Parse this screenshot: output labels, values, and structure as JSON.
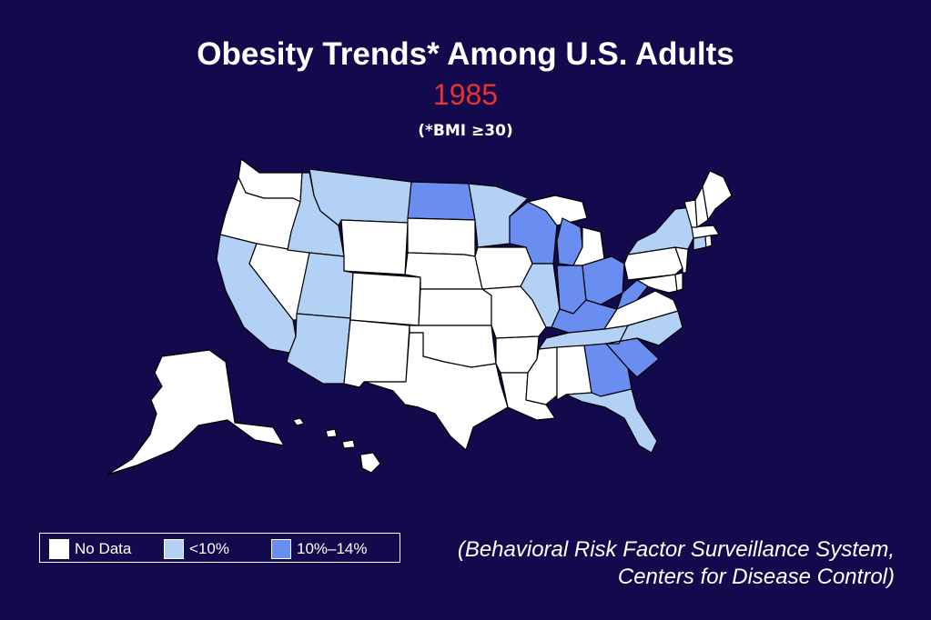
{
  "title": "Obesity Trends* Among U.S. Adults",
  "year": "1985",
  "subtitle": "(*BMI ≥30)",
  "legend": {
    "items": [
      {
        "label": "No Data",
        "color": "#ffffff"
      },
      {
        "label": "<10%",
        "color": "#b3d1f5"
      },
      {
        "label": "10%–14%",
        "color": "#6a8df2"
      }
    ]
  },
  "source": {
    "line1": "(Behavioral Risk Factor Surveillance System,",
    "line2": "Centers for Disease Control)"
  },
  "colors": {
    "background": "#13094d",
    "no_data": "#ffffff",
    "lt10": "#b3d1f5",
    "r10_14": "#6a8df2"
  },
  "states": {
    "lt10": [
      "MT",
      "ID",
      "MN",
      "NY",
      "CA",
      "UT",
      "AZ",
      "IL",
      "TN",
      "NC",
      "FL",
      "CT"
    ],
    "r10_14": [
      "ND",
      "WI",
      "MI-LP",
      "IN",
      "OH",
      "KY",
      "WV",
      "GA",
      "SC"
    ],
    "no_data": [
      "WA",
      "OR",
      "NV",
      "WY",
      "SD",
      "NE",
      "CO",
      "KS",
      "NM",
      "OK",
      "TX",
      "IA",
      "MO",
      "AR",
      "LA",
      "MS",
      "AL",
      "VA",
      "PA",
      "MD",
      "DE",
      "NJ",
      "MA",
      "VT",
      "NH",
      "ME",
      "RI",
      "MI-UP",
      "AK",
      "HI"
    ]
  }
}
